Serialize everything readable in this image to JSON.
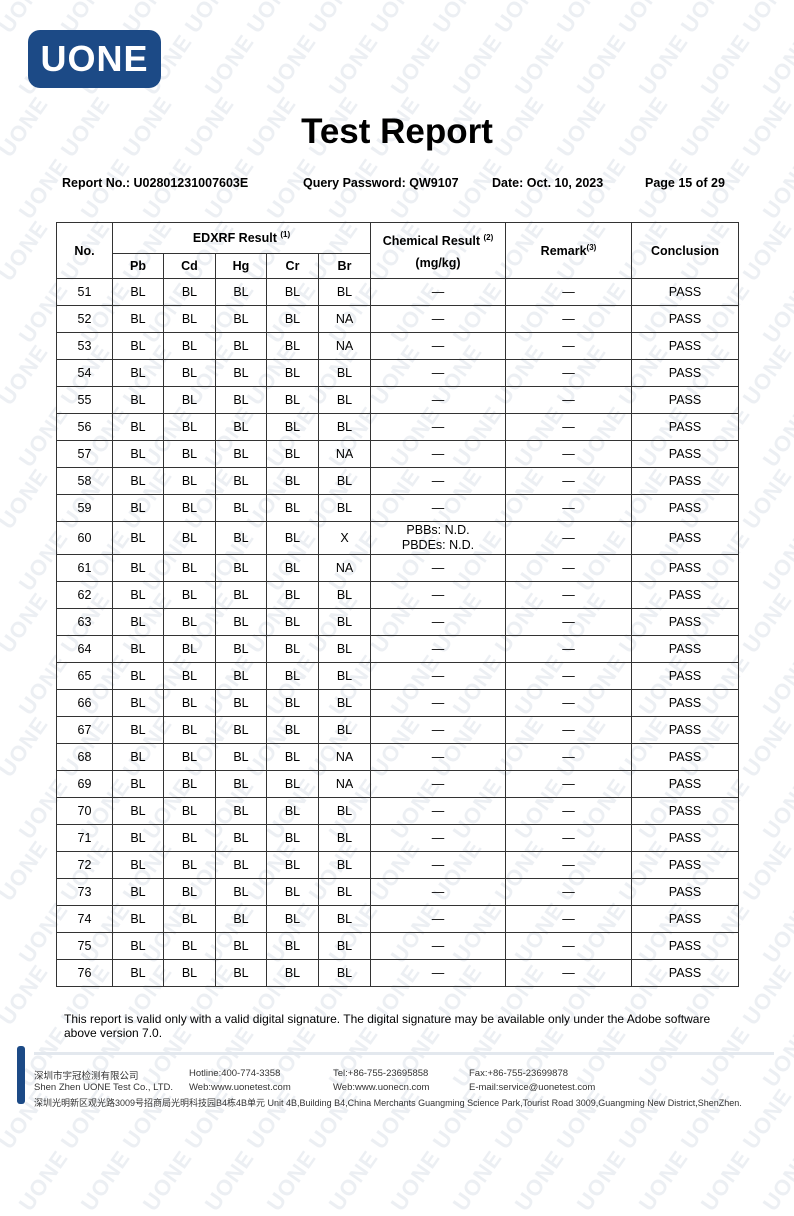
{
  "logo": {
    "text": "UONE",
    "color": "#1c4a86"
  },
  "watermark": {
    "text": "UONE"
  },
  "title": "Test Report",
  "meta": {
    "report_no": "Report No.: U02801231007603E",
    "query_password": "Query Password: QW9107",
    "date": "Date: Oct. 10, 2023",
    "page": "Page 15 of 29"
  },
  "table": {
    "headers": {
      "no": "No.",
      "edxrf": "EDXRF Result",
      "edxrf_note": "(1)",
      "elements": [
        "Pb",
        "Cd",
        "Hg",
        "Cr",
        "Br"
      ],
      "chemical": "Chemical Result",
      "chemical_note": "(2)",
      "chemical_unit": "(mg/kg)",
      "remark": "Remark",
      "remark_note": "(3)",
      "conclusion": "Conclusion"
    },
    "rows": [
      {
        "no": "51",
        "vals": [
          "BL",
          "BL",
          "BL",
          "BL",
          "BL"
        ],
        "chem": [
          "—"
        ],
        "remark": "—",
        "conclusion": "PASS"
      },
      {
        "no": "52",
        "vals": [
          "BL",
          "BL",
          "BL",
          "BL",
          "NA"
        ],
        "chem": [
          "—"
        ],
        "remark": "—",
        "conclusion": "PASS"
      },
      {
        "no": "53",
        "vals": [
          "BL",
          "BL",
          "BL",
          "BL",
          "NA"
        ],
        "chem": [
          "—"
        ],
        "remark": "—",
        "conclusion": "PASS"
      },
      {
        "no": "54",
        "vals": [
          "BL",
          "BL",
          "BL",
          "BL",
          "BL"
        ],
        "chem": [
          "—"
        ],
        "remark": "—",
        "conclusion": "PASS"
      },
      {
        "no": "55",
        "vals": [
          "BL",
          "BL",
          "BL",
          "BL",
          "BL"
        ],
        "chem": [
          "—"
        ],
        "remark": "—",
        "conclusion": "PASS"
      },
      {
        "no": "56",
        "vals": [
          "BL",
          "BL",
          "BL",
          "BL",
          "BL"
        ],
        "chem": [
          "—"
        ],
        "remark": "—",
        "conclusion": "PASS"
      },
      {
        "no": "57",
        "vals": [
          "BL",
          "BL",
          "BL",
          "BL",
          "NA"
        ],
        "chem": [
          "—"
        ],
        "remark": "—",
        "conclusion": "PASS"
      },
      {
        "no": "58",
        "vals": [
          "BL",
          "BL",
          "BL",
          "BL",
          "BL"
        ],
        "chem": [
          "—"
        ],
        "remark": "—",
        "conclusion": "PASS"
      },
      {
        "no": "59",
        "vals": [
          "BL",
          "BL",
          "BL",
          "BL",
          "BL"
        ],
        "chem": [
          "—"
        ],
        "remark": "—",
        "conclusion": "PASS"
      },
      {
        "no": "60",
        "vals": [
          "BL",
          "BL",
          "BL",
          "BL",
          "X"
        ],
        "chem": [
          "PBBs: N.D.",
          "PBDEs: N.D."
        ],
        "remark": "—",
        "conclusion": "PASS"
      },
      {
        "no": "61",
        "vals": [
          "BL",
          "BL",
          "BL",
          "BL",
          "NA"
        ],
        "chem": [
          "—"
        ],
        "remark": "—",
        "conclusion": "PASS"
      },
      {
        "no": "62",
        "vals": [
          "BL",
          "BL",
          "BL",
          "BL",
          "BL"
        ],
        "chem": [
          "—"
        ],
        "remark": "—",
        "conclusion": "PASS"
      },
      {
        "no": "63",
        "vals": [
          "BL",
          "BL",
          "BL",
          "BL",
          "BL"
        ],
        "chem": [
          "—"
        ],
        "remark": "—",
        "conclusion": "PASS"
      },
      {
        "no": "64",
        "vals": [
          "BL",
          "BL",
          "BL",
          "BL",
          "BL"
        ],
        "chem": [
          "—"
        ],
        "remark": "—",
        "conclusion": "PASS"
      },
      {
        "no": "65",
        "vals": [
          "BL",
          "BL",
          "BL",
          "BL",
          "BL"
        ],
        "chem": [
          "—"
        ],
        "remark": "—",
        "conclusion": "PASS"
      },
      {
        "no": "66",
        "vals": [
          "BL",
          "BL",
          "BL",
          "BL",
          "BL"
        ],
        "chem": [
          "—"
        ],
        "remark": "—",
        "conclusion": "PASS"
      },
      {
        "no": "67",
        "vals": [
          "BL",
          "BL",
          "BL",
          "BL",
          "BL"
        ],
        "chem": [
          "—"
        ],
        "remark": "—",
        "conclusion": "PASS"
      },
      {
        "no": "68",
        "vals": [
          "BL",
          "BL",
          "BL",
          "BL",
          "NA"
        ],
        "chem": [
          "—"
        ],
        "remark": "—",
        "conclusion": "PASS"
      },
      {
        "no": "69",
        "vals": [
          "BL",
          "BL",
          "BL",
          "BL",
          "NA"
        ],
        "chem": [
          "—"
        ],
        "remark": "—",
        "conclusion": "PASS"
      },
      {
        "no": "70",
        "vals": [
          "BL",
          "BL",
          "BL",
          "BL",
          "BL"
        ],
        "chem": [
          "—"
        ],
        "remark": "—",
        "conclusion": "PASS"
      },
      {
        "no": "71",
        "vals": [
          "BL",
          "BL",
          "BL",
          "BL",
          "BL"
        ],
        "chem": [
          "—"
        ],
        "remark": "—",
        "conclusion": "PASS"
      },
      {
        "no": "72",
        "vals": [
          "BL",
          "BL",
          "BL",
          "BL",
          "BL"
        ],
        "chem": [
          "—"
        ],
        "remark": "—",
        "conclusion": "PASS"
      },
      {
        "no": "73",
        "vals": [
          "BL",
          "BL",
          "BL",
          "BL",
          "BL"
        ],
        "chem": [
          "—"
        ],
        "remark": "—",
        "conclusion": "PASS"
      },
      {
        "no": "74",
        "vals": [
          "BL",
          "BL",
          "BL",
          "BL",
          "BL"
        ],
        "chem": [
          "—"
        ],
        "remark": "—",
        "conclusion": "PASS"
      },
      {
        "no": "75",
        "vals": [
          "BL",
          "BL",
          "BL",
          "BL",
          "BL"
        ],
        "chem": [
          "—"
        ],
        "remark": "—",
        "conclusion": "PASS"
      },
      {
        "no": "76",
        "vals": [
          "BL",
          "BL",
          "BL",
          "BL",
          "BL"
        ],
        "chem": [
          "—"
        ],
        "remark": "—",
        "conclusion": "PASS"
      }
    ]
  },
  "note": "This report is valid only with a valid digital signature. The digital signature may be available only under the Adobe software above version 7.0.",
  "footer": {
    "company_cn": "深圳市宇冠检测有限公司",
    "company_en": "Shen Zhen UONE Test Co., LTD.",
    "hotline": "Hotline:400-774-3358",
    "web1": "Web:www.uonetest.com",
    "tel": "Tel:+86-755-23695858",
    "web2": "Web:www.uonecn.com",
    "fax": "Fax:+86-755-23699878",
    "email": "E-mail:service@uonetest.com",
    "address": "深圳光明新区观光路3009号招商局光明科技园B4栋4B单元  Unit 4B,Building B4,China Merchants Guangming Science Park,Tourist Road 3009,Guangming New District,ShenZhen."
  }
}
